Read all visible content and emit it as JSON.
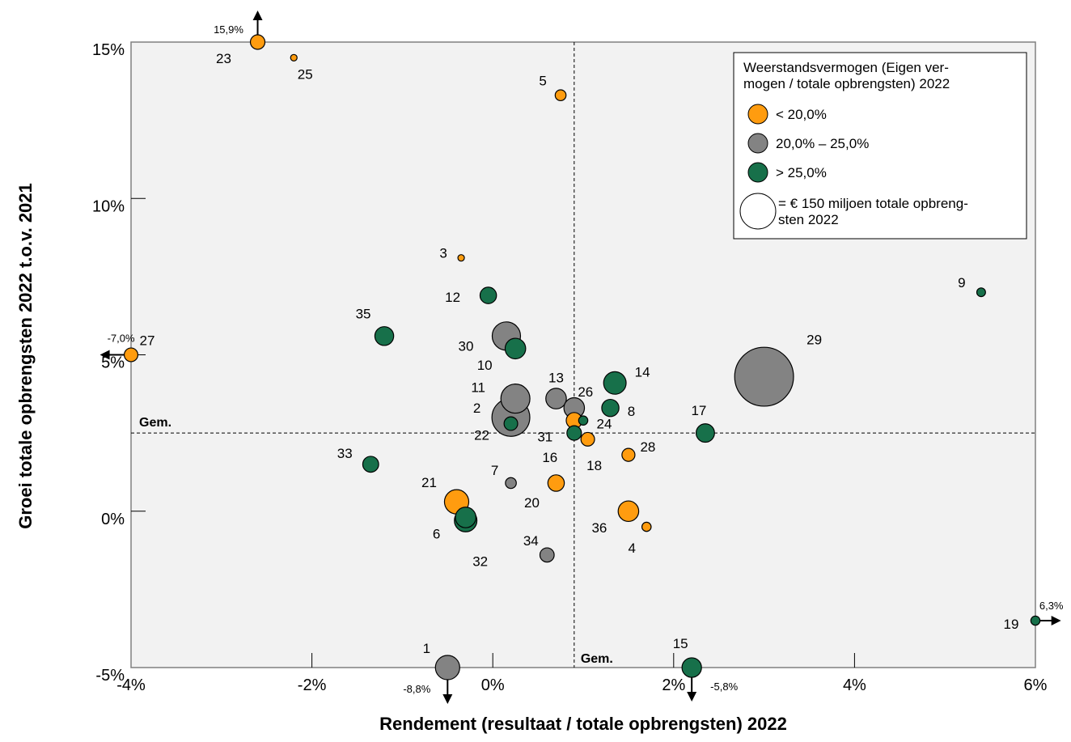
{
  "chart_data": {
    "type": "scatter",
    "xlabel": "Rendement (resultaat / totale opbrengsten) 2022",
    "ylabel": "Groei totale opbrengsten 2022 t.o.v. 2021",
    "xlim": [
      -4,
      6
    ],
    "ylim": [
      -5,
      15
    ],
    "x_ticks": [
      "-4%",
      "-2%",
      "0%",
      "2%",
      "4%",
      "6%"
    ],
    "y_ticks": [
      "-5%",
      "0%",
      "5%",
      "10%",
      "15%"
    ],
    "mean": {
      "x": 0.9,
      "y": 2.5,
      "label": "Gem."
    },
    "legend": {
      "title": "Weerstandsvermogen (Eigen ver-\nmogen / totale opbrengsten) 2022",
      "entries": [
        {
          "key": "low",
          "label": "< 20,0%",
          "color": "#ff9c0f"
        },
        {
          "key": "mid",
          "label": "20,0% – 25,0%",
          "color": "#838383"
        },
        {
          "key": "high",
          "label": "> 25,0%",
          "color": "#17704a"
        }
      ],
      "size_label": "= € 150 miljoen totale opbreng-\nsten 2022",
      "size_reference": 150
    },
    "points": [
      {
        "id": "1",
        "x": -0.5,
        "y": -5.0,
        "size": 70,
        "group": "mid",
        "clip_label": "-8,8%",
        "clip_dir": "down"
      },
      {
        "id": "2",
        "x": 0.2,
        "y": 3.0,
        "size": 170,
        "group": "mid"
      },
      {
        "id": "3",
        "x": -0.35,
        "y": 8.1,
        "size": 5,
        "group": "low"
      },
      {
        "id": "4",
        "x": 1.7,
        "y": -0.5,
        "size": 10,
        "group": "low"
      },
      {
        "id": "5",
        "x": 0.75,
        "y": 13.3,
        "size": 14,
        "group": "low"
      },
      {
        "id": "6",
        "x": -0.3,
        "y": -0.2,
        "size": 50,
        "group": "high"
      },
      {
        "id": "7",
        "x": 0.2,
        "y": 0.9,
        "size": 14,
        "group": "mid"
      },
      {
        "id": "8",
        "x": 1.3,
        "y": 3.3,
        "size": 35,
        "group": "high"
      },
      {
        "id": "9",
        "x": 5.4,
        "y": 7.0,
        "size": 9,
        "group": "high"
      },
      {
        "id": "10",
        "x": 0.25,
        "y": 5.2,
        "size": 50,
        "group": "high"
      },
      {
        "id": "11",
        "x": 0.25,
        "y": 3.6,
        "size": 100,
        "group": "mid"
      },
      {
        "id": "12",
        "x": -0.05,
        "y": 6.9,
        "size": 32,
        "group": "high"
      },
      {
        "id": "13",
        "x": 0.7,
        "y": 3.6,
        "size": 50,
        "group": "mid"
      },
      {
        "id": "14",
        "x": 1.35,
        "y": 4.1,
        "size": 60,
        "group": "high"
      },
      {
        "id": "15",
        "x": 2.2,
        "y": -5.0,
        "size": 45,
        "group": "high",
        "clip_label": "-5,8%",
        "clip_dir": "down"
      },
      {
        "id": "16",
        "x": 0.9,
        "y": 2.5,
        "size": 25,
        "group": "high"
      },
      {
        "id": "17",
        "x": 2.35,
        "y": 2.5,
        "size": 40,
        "group": "high"
      },
      {
        "id": "18",
        "x": 1.05,
        "y": 2.3,
        "size": 22,
        "group": "low"
      },
      {
        "id": "19",
        "x": 6.0,
        "y": -3.5,
        "size": 10,
        "group": "high",
        "clip_label": "6,3%",
        "clip_dir": "right"
      },
      {
        "id": "20",
        "x": 0.7,
        "y": 0.9,
        "size": 32,
        "group": "low"
      },
      {
        "id": "21",
        "x": -0.4,
        "y": 0.3,
        "size": 70,
        "group": "low"
      },
      {
        "id": "22",
        "x": 0.2,
        "y": 2.8,
        "size": 22,
        "group": "high"
      },
      {
        "id": "23",
        "x": -2.6,
        "y": 15.0,
        "size": 25,
        "group": "low",
        "clip_label": "15,9%",
        "clip_dir": "up"
      },
      {
        "id": "24",
        "x": 1.0,
        "y": 2.9,
        "size": 10,
        "group": "high"
      },
      {
        "id": "25",
        "x": -2.2,
        "y": 14.5,
        "size": 5,
        "group": "low"
      },
      {
        "id": "26",
        "x": 0.9,
        "y": 3.3,
        "size": 50,
        "group": "mid"
      },
      {
        "id": "27",
        "x": -4.0,
        "y": 5.0,
        "size": 22,
        "group": "low",
        "clip_label": "-7,0%",
        "clip_dir": "left"
      },
      {
        "id": "28",
        "x": 1.5,
        "y": 1.8,
        "size": 20,
        "group": "low"
      },
      {
        "id": "29",
        "x": 3.0,
        "y": 4.3,
        "size": 410,
        "group": "mid"
      },
      {
        "id": "30",
        "x": 0.15,
        "y": 5.6,
        "size": 95,
        "group": "mid"
      },
      {
        "id": "31",
        "x": 0.9,
        "y": 2.9,
        "size": 30,
        "group": "low"
      },
      {
        "id": "32",
        "x": -0.3,
        "y": -0.3,
        "size": 60,
        "group": "high"
      },
      {
        "id": "33",
        "x": -1.35,
        "y": 1.5,
        "size": 30,
        "group": "high"
      },
      {
        "id": "34",
        "x": 0.6,
        "y": -1.4,
        "size": 24,
        "group": "mid"
      },
      {
        "id": "35",
        "x": -1.2,
        "y": 5.6,
        "size": 42,
        "group": "high"
      },
      {
        "id": "36",
        "x": 1.5,
        "y": 0.0,
        "size": 50,
        "group": "low"
      }
    ]
  }
}
